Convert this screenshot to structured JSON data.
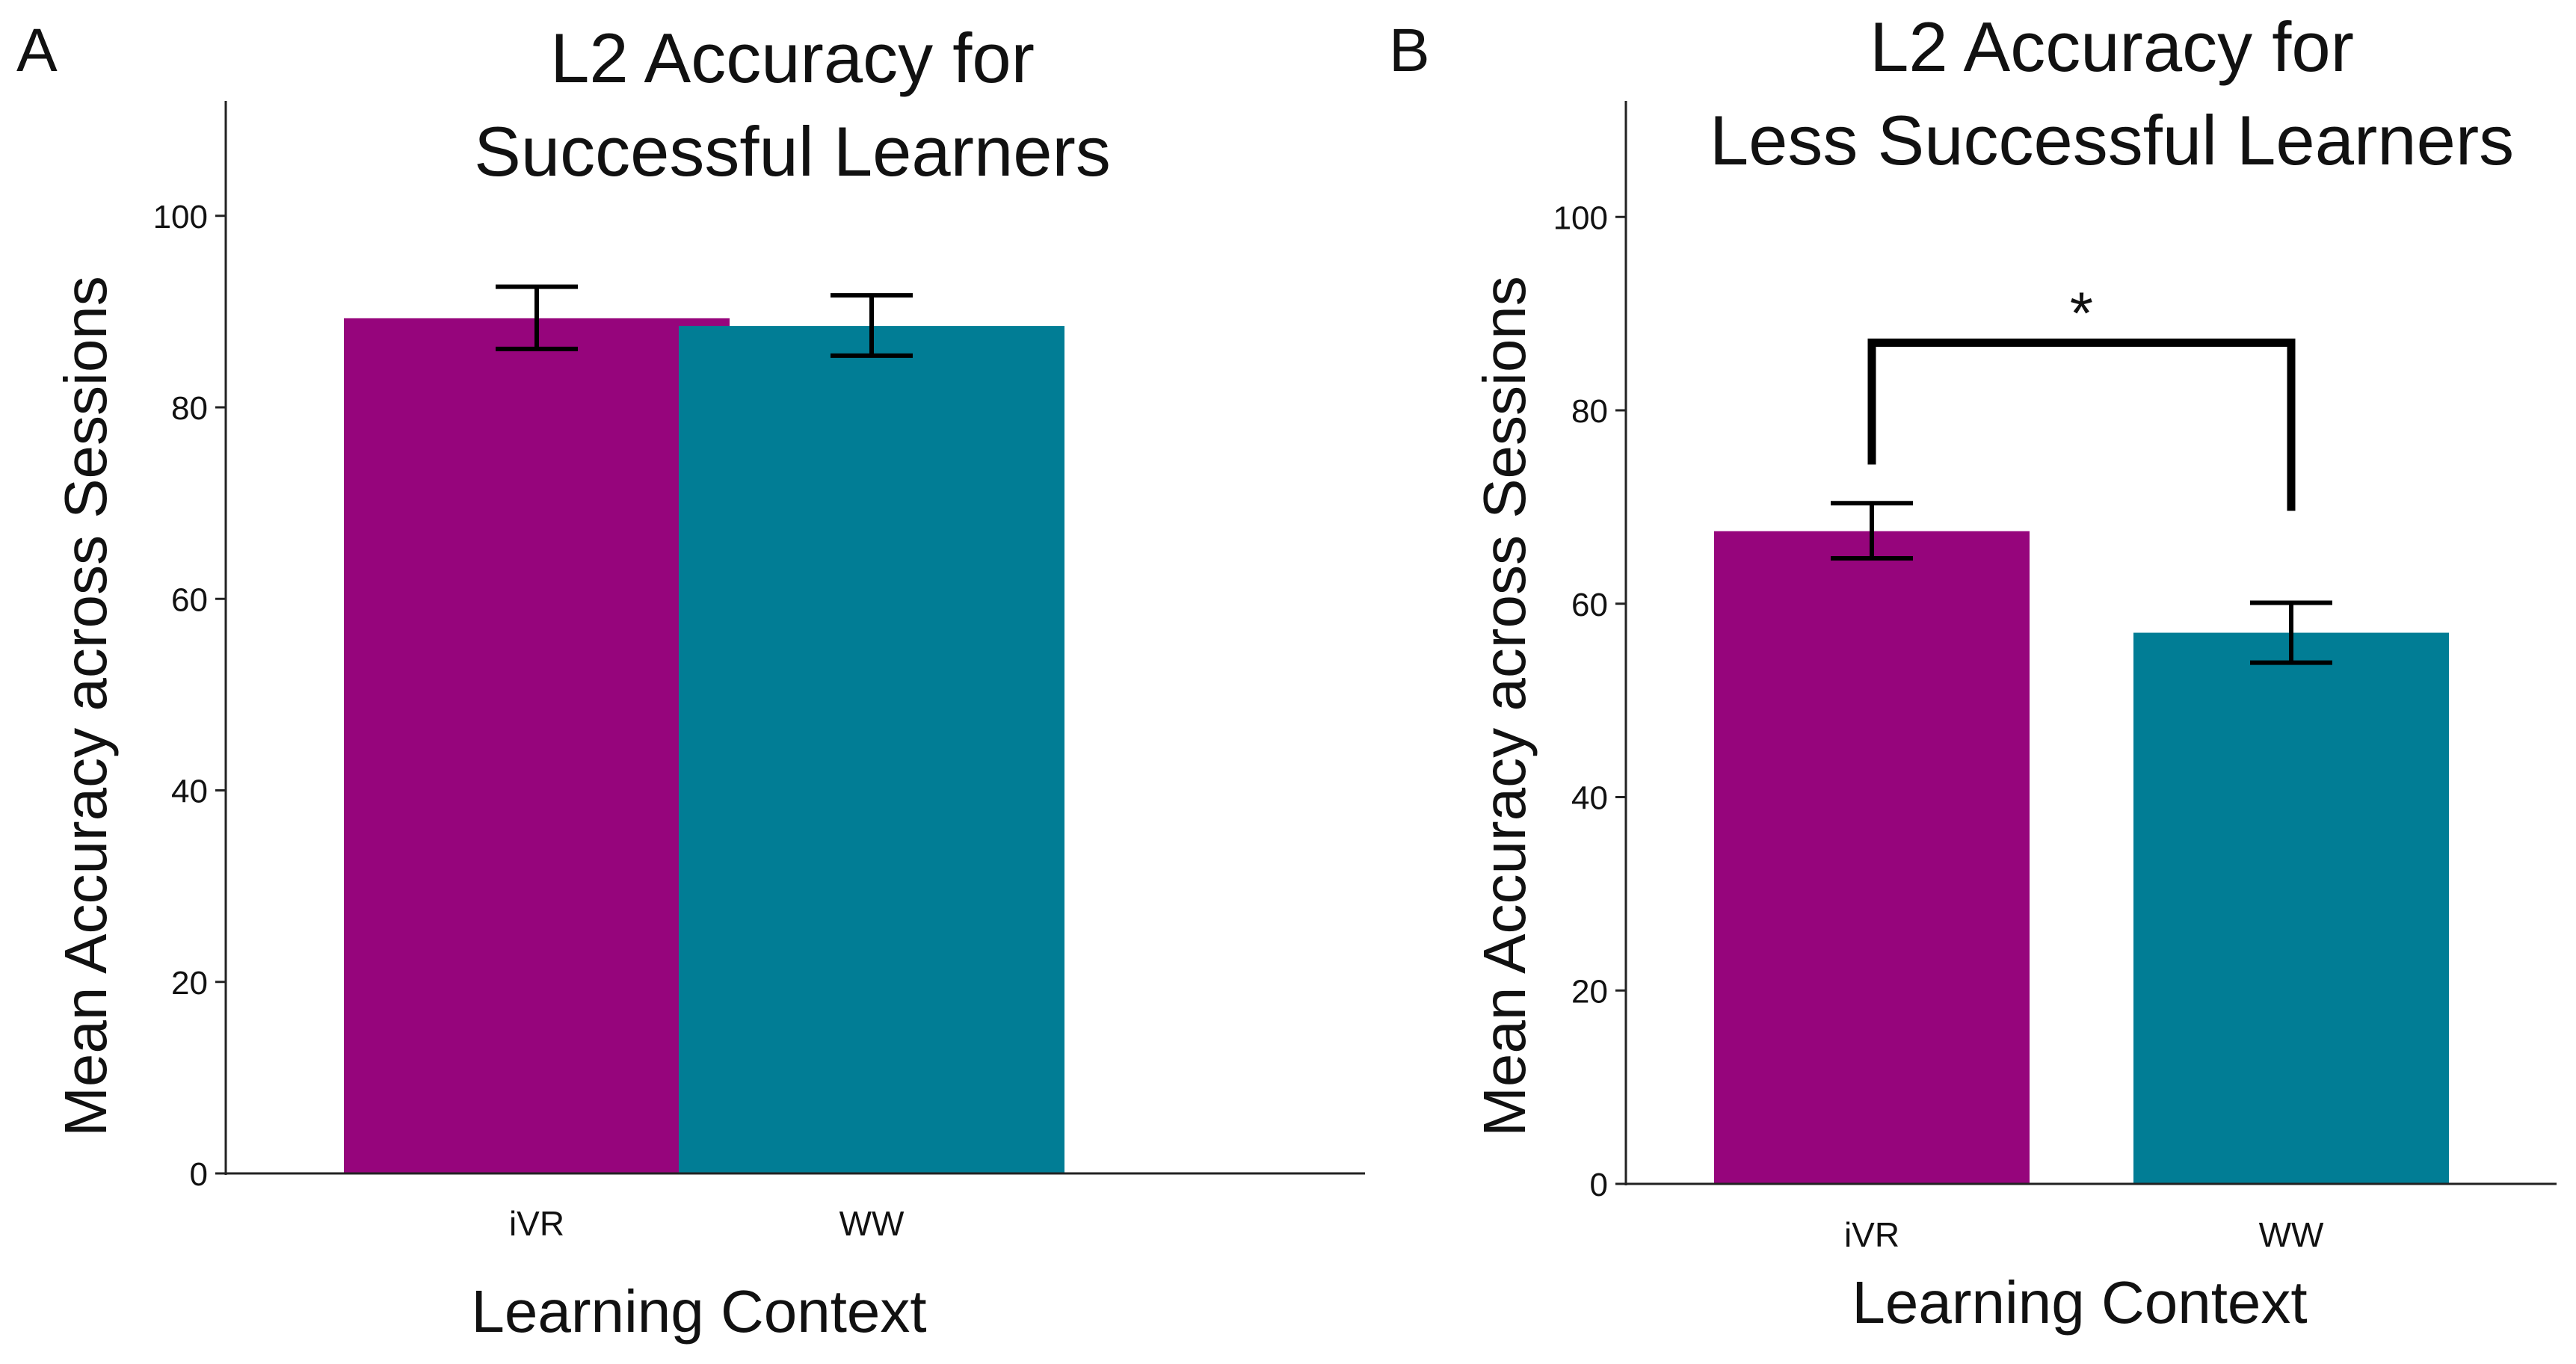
{
  "chart_data": [
    {
      "type": "bar",
      "panel_label": "A",
      "title": [
        "L2 Accuracy for",
        "Successful Learners"
      ],
      "xlabel": "Learning Context",
      "ylabel": "Mean Accuracy across Sessions",
      "ylim": [
        0,
        112
      ],
      "yticks": [
        0,
        20,
        40,
        60,
        80,
        100
      ],
      "categories": [
        "iVR",
        "WW"
      ],
      "values": [
        89.3,
        88.5
      ],
      "error_low": [
        86.1,
        85.4
      ],
      "error_high": [
        92.6,
        91.7
      ],
      "colors": [
        "#96057c",
        "#017d95"
      ],
      "significance": null,
      "grid": false
    },
    {
      "type": "bar",
      "panel_label": "B",
      "title": [
        "L2 Accuracy for",
        "Less Successful Learners"
      ],
      "xlabel": "Learning Context",
      "ylabel": "Mean Accuracy across Sessions",
      "ylim": [
        0,
        112
      ],
      "yticks": [
        0,
        20,
        40,
        60,
        80,
        100
      ],
      "categories": [
        "iVR",
        "WW"
      ],
      "values": [
        67.5,
        57.0
      ],
      "error_low": [
        64.7,
        53.9
      ],
      "error_high": [
        70.4,
        60.1
      ],
      "colors": [
        "#96057c",
        "#017d95"
      ],
      "significance": {
        "label": "*",
        "between": [
          "iVR",
          "WW"
        ],
        "level": 87
      },
      "grid": false
    }
  ]
}
